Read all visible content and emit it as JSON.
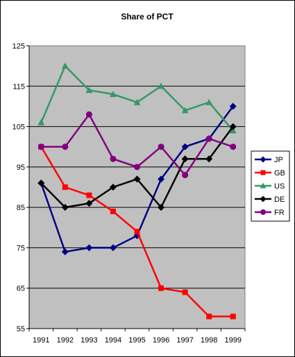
{
  "chart_data": {
    "type": "line",
    "title": "Share of PCT",
    "xlabel": "",
    "ylabel": "",
    "ylim": [
      55,
      125
    ],
    "yticks": [
      "55",
      "65",
      "75",
      "85",
      "95",
      "105",
      "115",
      "125"
    ],
    "categories": [
      "1991",
      "1992",
      "1993",
      "1994",
      "1995",
      "1996",
      "1997",
      "1998",
      "1999"
    ],
    "grid": "horizontal",
    "legend_position": "right",
    "series": [
      {
        "name": "JP",
        "color": "#000080",
        "marker": "diamond",
        "values": [
          91,
          74,
          75,
          75,
          78,
          92,
          100,
          102,
          110
        ]
      },
      {
        "name": "GB",
        "color": "#ff0000",
        "marker": "square",
        "values": [
          100,
          90,
          88,
          84,
          79,
          65,
          64,
          58,
          58
        ]
      },
      {
        "name": "US",
        "color": "#339966",
        "marker": "triangle",
        "values": [
          106,
          120,
          114,
          113,
          111,
          115,
          109,
          111,
          104
        ]
      },
      {
        "name": "DE",
        "color": "#000000",
        "marker": "diamond",
        "values": [
          91,
          85,
          86,
          90,
          92,
          85,
          97,
          97,
          105
        ]
      },
      {
        "name": "FR",
        "color": "#800080",
        "marker": "circle",
        "values": [
          100,
          100,
          108,
          97,
          95,
          100,
          93,
          102,
          100
        ]
      }
    ]
  }
}
